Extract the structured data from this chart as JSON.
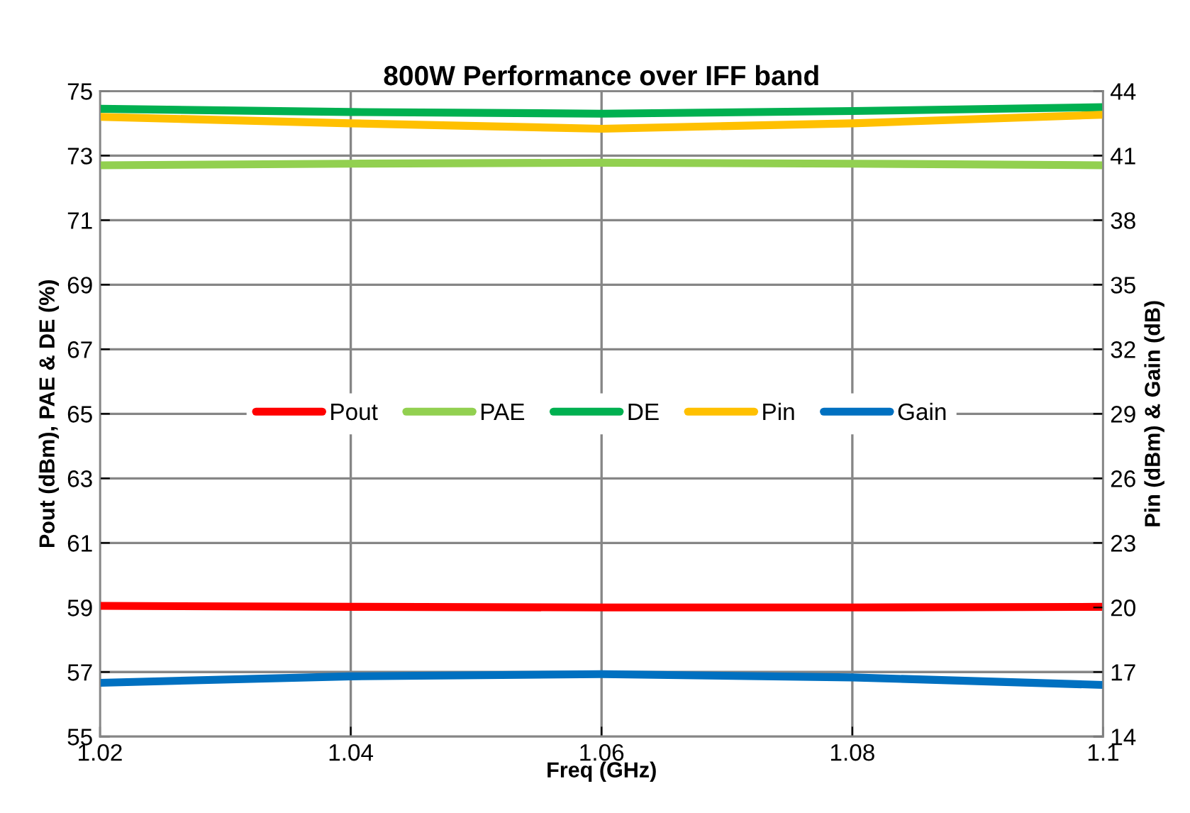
{
  "chart_data": {
    "type": "line",
    "title": "800W Performance over IFF band",
    "xlabel": "Freq (GHz)",
    "ylabel": "Pout (dBm), PAE & DE (%)",
    "y2label": "Pin (dBm) & Gain (dB)",
    "x": [
      1.02,
      1.04,
      1.06,
      1.08,
      1.1
    ],
    "series": [
      {
        "name": "Pout",
        "color": "#ff0000",
        "values": [
          59.05,
          59.02,
          59.0,
          59.0,
          59.02
        ]
      },
      {
        "name": "PAE",
        "color": "#92d050",
        "values": [
          72.7,
          72.75,
          72.78,
          72.75,
          72.7
        ]
      },
      {
        "name": "DE",
        "color": "#00b050",
        "values": [
          74.45,
          74.35,
          74.3,
          74.38,
          74.5
        ]
      },
      {
        "name": "Pin",
        "color": "#ffc000",
        "values": [
          42.8,
          42.5,
          42.25,
          42.5,
          42.9
        ],
        "axis": "y2"
      },
      {
        "name": "Gain",
        "color": "#0070c0",
        "values": [
          16.5,
          16.8,
          16.9,
          16.75,
          16.4
        ],
        "axis": "y2"
      }
    ],
    "xlim": [
      1.02,
      1.1
    ],
    "xticks": [
      1.02,
      1.04,
      1.06,
      1.08,
      {
        "value": 1.1,
        "label": "1.1"
      }
    ],
    "ylim": [
      55,
      75
    ],
    "yticks": [
      55,
      57,
      59,
      61,
      63,
      65,
      67,
      69,
      71,
      73,
      75
    ],
    "y2lim": [
      14,
      44
    ],
    "y2ticks": [
      14,
      17,
      20,
      23,
      26,
      29,
      32,
      35,
      38,
      41,
      44
    ],
    "grid": true,
    "legend": "center",
    "marker": "none",
    "line_style": "solid"
  }
}
